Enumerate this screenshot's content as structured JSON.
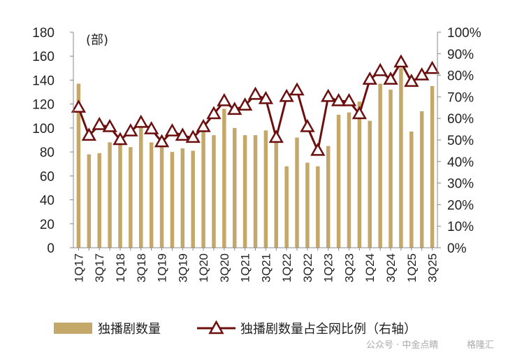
{
  "chart_data": {
    "type": "bar+line",
    "unit_label": "(部)",
    "categories": [
      "1Q17",
      "2Q17",
      "3Q17",
      "4Q17",
      "1Q18",
      "2Q18",
      "3Q18",
      "4Q18",
      "1Q19",
      "2Q19",
      "3Q19",
      "4Q19",
      "1Q20",
      "2Q20",
      "3Q20",
      "4Q20",
      "1Q21",
      "2Q21",
      "3Q21",
      "4Q21",
      "1Q22",
      "2Q22",
      "3Q22",
      "4Q22",
      "1Q23",
      "2Q23",
      "3Q23",
      "4Q23",
      "1Q24",
      "2Q24",
      "3Q24",
      "4Q24",
      "1Q25",
      "2Q25",
      "3Q25"
    ],
    "x_tick_labels": [
      "1Q17",
      "3Q17",
      "1Q18",
      "3Q18",
      "1Q19",
      "3Q19",
      "1Q20",
      "3Q20",
      "1Q21",
      "3Q21",
      "1Q22",
      "3Q22",
      "1Q23",
      "3Q23",
      "1Q24",
      "3Q24",
      "1Q25",
      "3Q25"
    ],
    "series": [
      {
        "name": "独播剧数量",
        "type": "bar",
        "axis": "left",
        "color": "#c4a86a",
        "values": [
          137,
          78,
          79,
          88,
          86,
          84,
          102,
          88,
          86,
          80,
          83,
          81,
          99,
          94,
          116,
          100,
          94,
          94,
          98,
          91,
          68,
          92,
          71,
          68,
          85,
          111,
          113,
          122,
          106,
          137,
          132,
          150,
          97,
          114,
          135
        ]
      },
      {
        "name": "独播剧数量占全网比例（右轴）",
        "type": "line",
        "axis": "right",
        "color": "#6b0f0f",
        "values": [
          65,
          52,
          57,
          56,
          50,
          54,
          58,
          55,
          49,
          54,
          52,
          51,
          56,
          62,
          68,
          64,
          66,
          71,
          69,
          51,
          70,
          73,
          56,
          45,
          70,
          68,
          68,
          62,
          78,
          82,
          78,
          86,
          77,
          80,
          83
        ]
      }
    ],
    "y_left": {
      "min": 0,
      "max": 180,
      "step": 20,
      "tick_labels": [
        "0",
        "20",
        "40",
        "60",
        "80",
        "100",
        "120",
        "140",
        "160",
        "180"
      ]
    },
    "y_right": {
      "min": 0,
      "max": 100,
      "step": 10,
      "tick_labels": [
        "0%",
        "10%",
        "20%",
        "30%",
        "40%",
        "50%",
        "60%",
        "70%",
        "80%",
        "90%",
        "100%"
      ]
    },
    "legend_position": "bottom",
    "grid": false
  },
  "watermark": {
    "text": "公众号 · 中金点睛",
    "brand": "格隆汇"
  }
}
